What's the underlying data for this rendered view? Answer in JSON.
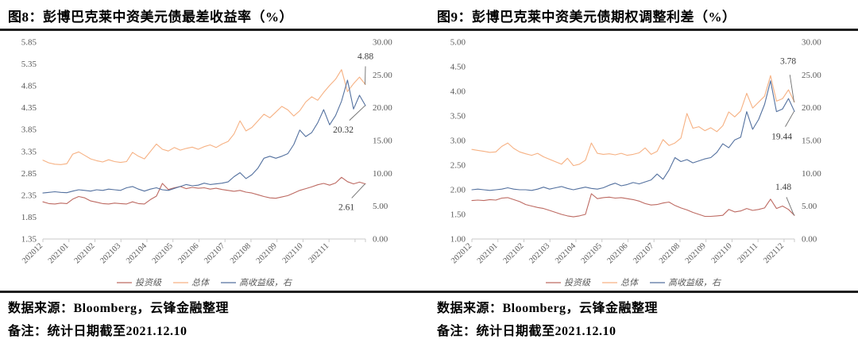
{
  "panels": [
    {
      "title": "图8：彭博巴克莱中资美元债最差收益率（%）",
      "source": "数据来源：Bloomberg，云锋金融整理",
      "note": "备注：统计日期截至2021.12.10"
    },
    {
      "title": "图9：彭博巴克莱中资美元债期权调整利差（%）",
      "source": "数据来源：Bloomberg，云锋金融整理",
      "note": "备注：统计日期截至2021.12.10"
    }
  ],
  "style": {
    "axis_text_color": "#595959",
    "axis_line_color": "#c9c9c9",
    "data_label_color": "#3d3d3d",
    "connector_color": "#6e6e6e",
    "legend_text_color": "#595959"
  },
  "chart_data": [
    {
      "type": "line",
      "title": "彭博巴克莱中资美元债最差收益率（%）",
      "grid": false,
      "legend_position": "bottom",
      "x_total_months": 12.4,
      "x_tick_labels": [
        "202012",
        "202101",
        "202102",
        "202103",
        "202104",
        "202105",
        "202106",
        "202107",
        "202108",
        "202109",
        "202110",
        "202111"
      ],
      "left_axis": {
        "min": 1.35,
        "max": 5.85,
        "step": 0.5,
        "tick_labels": [
          "5.85",
          "5.35",
          "4.85",
          "4.35",
          "3.85",
          "3.35",
          "2.85",
          "2.35",
          "1.85",
          "1.35"
        ]
      },
      "right_axis": {
        "min": 0,
        "max": 30,
        "step": 5,
        "tick_labels": [
          "30.00",
          "25.00",
          "20.00",
          "15.00",
          "10.00",
          "5.00",
          "0.00"
        ]
      },
      "series": [
        {
          "name": "投资级",
          "axis": "left",
          "color": "#bd6a62",
          "end_label": {
            "text": "2.61",
            "dx": -24,
            "dy": 29
          },
          "values": [
            2.2,
            2.16,
            2.15,
            2.17,
            2.16,
            2.26,
            2.32,
            2.29,
            2.22,
            2.19,
            2.16,
            2.15,
            2.17,
            2.16,
            2.15,
            2.2,
            2.16,
            2.15,
            2.25,
            2.33,
            2.62,
            2.48,
            2.52,
            2.55,
            2.5,
            2.53,
            2.51,
            2.52,
            2.49,
            2.51,
            2.48,
            2.46,
            2.44,
            2.46,
            2.42,
            2.4,
            2.36,
            2.32,
            2.29,
            2.28,
            2.31,
            2.34,
            2.4,
            2.46,
            2.5,
            2.54,
            2.59,
            2.62,
            2.58,
            2.63,
            2.76,
            2.66,
            2.61,
            2.65,
            2.61
          ]
        },
        {
          "name": "总体",
          "axis": "left",
          "color": "#f6b183",
          "end_label": {
            "text": "4.88",
            "dx": 0,
            "dy": -36
          },
          "values": [
            3.15,
            3.09,
            3.06,
            3.05,
            3.07,
            3.29,
            3.34,
            3.26,
            3.18,
            3.14,
            3.11,
            3.16,
            3.12,
            3.1,
            3.12,
            3.33,
            3.24,
            3.18,
            3.35,
            3.52,
            3.4,
            3.36,
            3.44,
            3.38,
            3.42,
            3.45,
            3.4,
            3.46,
            3.5,
            3.44,
            3.52,
            3.58,
            3.75,
            4.05,
            3.82,
            3.9,
            4.05,
            4.2,
            4.12,
            4.25,
            4.38,
            4.3,
            4.16,
            4.28,
            4.48,
            4.6,
            4.52,
            4.7,
            4.86,
            5.0,
            5.22,
            4.72,
            4.9,
            5.05,
            4.88
          ]
        },
        {
          "name": "高收益级，右",
          "axis": "right",
          "color": "#54719f",
          "end_label": {
            "text": "20.32",
            "dx": -28,
            "dy": 30
          },
          "values": [
            7.0,
            7.1,
            7.2,
            7.1,
            7.05,
            7.3,
            7.5,
            7.4,
            7.3,
            7.5,
            7.4,
            7.6,
            7.5,
            7.4,
            7.8,
            8.0,
            7.6,
            7.3,
            7.6,
            7.8,
            7.5,
            7.4,
            7.7,
            8.0,
            8.3,
            8.1,
            8.2,
            8.5,
            8.3,
            8.4,
            8.5,
            8.7,
            9.5,
            10.1,
            9.2,
            9.8,
            10.8,
            12.3,
            12.6,
            12.3,
            12.6,
            13.0,
            14.4,
            16.6,
            15.6,
            16.2,
            17.7,
            19.7,
            17.4,
            18.8,
            21.0,
            24.2,
            19.8,
            21.9,
            20.32
          ]
        }
      ]
    },
    {
      "type": "line",
      "title": "彭博巴克莱中资美元债期权调整利差（%）",
      "grid": false,
      "legend_position": "bottom",
      "x_total_months": 12.4,
      "x_tick_labels": [
        "202012",
        "202101",
        "202102",
        "202103",
        "202104",
        "202105",
        "202106",
        "202107",
        "202108",
        "202109",
        "202110",
        "202111",
        "202112"
      ],
      "left_axis": {
        "min": 1.0,
        "max": 5.0,
        "step": 0.5,
        "tick_labels": [
          "5.00",
          "4.50",
          "4.00",
          "3.50",
          "3.00",
          "2.50",
          "2.00",
          "1.50",
          "1.00"
        ]
      },
      "right_axis": {
        "min": 0,
        "max": 30,
        "step": 5,
        "tick_labels": [
          "30.00",
          "25.00",
          "20.00",
          "15.00",
          "10.00",
          "5.00",
          "0.00"
        ]
      },
      "series": [
        {
          "name": "投资级",
          "axis": "left",
          "color": "#bd6a62",
          "end_label": {
            "text": "1.48",
            "dx": -14,
            "dy": -36
          },
          "values": [
            1.78,
            1.79,
            1.78,
            1.8,
            1.79,
            1.83,
            1.84,
            1.8,
            1.76,
            1.7,
            1.67,
            1.64,
            1.62,
            1.58,
            1.54,
            1.5,
            1.47,
            1.45,
            1.47,
            1.5,
            1.92,
            1.82,
            1.84,
            1.85,
            1.83,
            1.84,
            1.82,
            1.8,
            1.77,
            1.72,
            1.69,
            1.7,
            1.73,
            1.75,
            1.68,
            1.63,
            1.59,
            1.54,
            1.5,
            1.46,
            1.46,
            1.47,
            1.48,
            1.6,
            1.55,
            1.57,
            1.62,
            1.58,
            1.6,
            1.63,
            1.81,
            1.62,
            1.67,
            1.6,
            1.48
          ]
        },
        {
          "name": "总体",
          "axis": "left",
          "color": "#f6b183",
          "end_label": {
            "text": "3.78",
            "dx": -8,
            "dy": -52
          },
          "values": [
            2.82,
            2.8,
            2.78,
            2.76,
            2.77,
            2.88,
            2.95,
            2.84,
            2.77,
            2.73,
            2.7,
            2.74,
            2.67,
            2.62,
            2.57,
            2.52,
            2.64,
            2.49,
            2.52,
            2.6,
            2.95,
            2.74,
            2.72,
            2.73,
            2.71,
            2.74,
            2.7,
            2.72,
            2.75,
            2.85,
            2.72,
            2.78,
            3.02,
            2.9,
            2.95,
            3.05,
            3.55,
            3.25,
            3.28,
            3.2,
            3.26,
            3.18,
            3.3,
            3.58,
            3.48,
            3.6,
            3.96,
            3.66,
            3.78,
            3.9,
            4.32,
            3.8,
            3.85,
            4.03,
            3.78
          ]
        },
        {
          "name": "高收益级，右",
          "axis": "right",
          "color": "#54719f",
          "end_label": {
            "text": "19.44",
            "dx": -16,
            "dy": 31
          },
          "values": [
            7.5,
            7.6,
            7.5,
            7.4,
            7.5,
            7.6,
            7.8,
            7.6,
            7.5,
            7.5,
            7.4,
            7.6,
            7.9,
            7.6,
            7.8,
            8.0,
            7.7,
            7.5,
            7.7,
            7.9,
            7.7,
            7.6,
            7.8,
            8.2,
            8.5,
            8.1,
            8.3,
            8.6,
            8.4,
            8.7,
            9.0,
            9.9,
            9.1,
            10.5,
            12.4,
            11.8,
            12.1,
            11.6,
            11.9,
            12.2,
            12.4,
            13.2,
            14.5,
            13.9,
            15.1,
            15.5,
            19.4,
            16.7,
            18.2,
            20.5,
            24.1,
            19.4,
            19.8,
            21.4,
            19.44
          ]
        }
      ]
    }
  ]
}
